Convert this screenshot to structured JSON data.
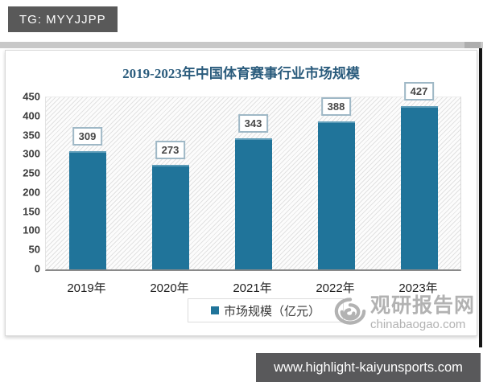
{
  "badge": {
    "label": "TG: MYYJJPP"
  },
  "chart_data": {
    "type": "bar",
    "title": "2019-2023年中国体育赛事行业市场规模",
    "categories": [
      "2019年",
      "2020年",
      "2021年",
      "2022年",
      "2023年"
    ],
    "values": [
      309,
      273,
      343,
      388,
      427
    ],
    "series_name": "市场规模（亿元）",
    "legend": [
      "市场规模（亿元）"
    ],
    "legend_position": "bottom",
    "xlabel": "",
    "ylabel": "",
    "ylim": [
      0,
      450
    ],
    "y_ticks": [
      0,
      50,
      100,
      150,
      200,
      250,
      300,
      350,
      400,
      450
    ],
    "grid": false,
    "plot_background": "diagonal-hatch",
    "bar_color": "#20749a",
    "data_labels_boxed": true
  },
  "legend": {
    "label": "市场规模（亿元）"
  },
  "watermark": {
    "site_name": "观研报告网",
    "site_domain": "chinabaogao.com"
  },
  "footer": {
    "url": "www.highlight-kaiyunsports.com"
  },
  "colors": {
    "bar": "#20749a",
    "title": "#2b5c7d",
    "badge_bg": "#595959",
    "footer_bg": "#59595b",
    "watermark": "#b2b2b2",
    "value_box_border": "#9fb8c6"
  }
}
